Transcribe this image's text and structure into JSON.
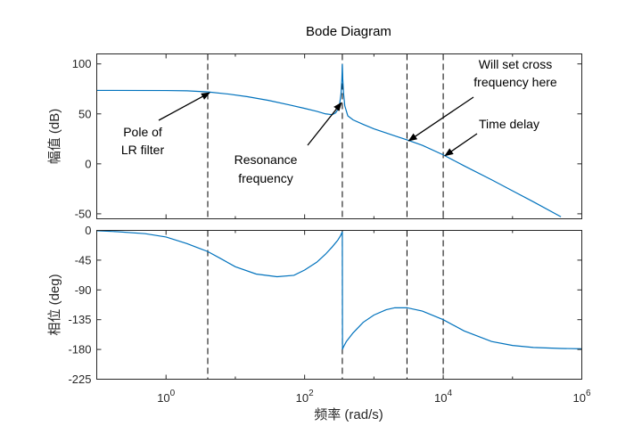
{
  "chart_data": {
    "type": "line",
    "title": "Bode Diagram",
    "xlabel": "频率  (rad/s)",
    "xscale": "log",
    "xlim": [
      0.1,
      1000000
    ],
    "xticks": [
      {
        "value": 1,
        "base": "10",
        "exp": "0"
      },
      {
        "value": 100,
        "base": "10",
        "exp": "2"
      },
      {
        "value": 10000,
        "base": "10",
        "exp": "4"
      },
      {
        "value": 1000000,
        "base": "10",
        "exp": "6"
      }
    ],
    "grid": false,
    "line_color": "#0072BD",
    "vlines": [
      4,
      350,
      3000,
      10000
    ],
    "magnitude": {
      "ylabel": "幅值 (dB)",
      "ylim": [
        -55,
        110
      ],
      "yticks": [
        "-50",
        "0",
        "50",
        "100"
      ],
      "series": [
        {
          "x": [
            0.1,
            1,
            2,
            4,
            8,
            15,
            30,
            60,
            100,
            150,
            200,
            250,
            280,
            300,
            320,
            335,
            345,
            350,
            355,
            365,
            380,
            420,
            500,
            700,
            1000,
            2000,
            3000,
            5000,
            10000,
            20000,
            50000,
            100000,
            200000,
            500000
          ],
          "y": [
            73.5,
            73.4,
            73.1,
            72,
            69.8,
            67.2,
            63.5,
            59,
            55.5,
            52.5,
            50,
            49.2,
            51,
            54,
            60,
            70,
            85,
            100,
            85,
            70,
            58,
            48,
            44,
            39.5,
            35,
            28,
            24,
            18.5,
            9,
            -2,
            -16,
            -27,
            -38,
            -53
          ]
        }
      ]
    },
    "phase": {
      "ylabel": "相位 (deg)",
      "ylim": [
        -225,
        0
      ],
      "yticks": [
        "0",
        "-45",
        "-90",
        "-135",
        "-180",
        "-225"
      ],
      "series": [
        {
          "x": [
            0.1,
            0.2,
            0.5,
            1,
            2,
            3,
            4,
            6,
            10,
            20,
            40,
            70,
            100,
            150,
            200,
            250,
            300,
            330,
            350,
            352,
            360,
            400,
            500,
            700,
            1000,
            1500,
            2000,
            3000,
            5000,
            10000,
            20000,
            50000,
            100000,
            200000,
            500000,
            1000000
          ],
          "y": [
            -0.5,
            -2,
            -5,
            -10,
            -20,
            -27,
            -32,
            -42,
            -55,
            -66,
            -70,
            -68,
            -60,
            -48,
            -36,
            -25,
            -15,
            -8,
            -2,
            -180,
            -177,
            -168,
            -155,
            -139,
            -128,
            -120,
            -117,
            -117,
            -122,
            -135,
            -152,
            -168,
            -174,
            -177,
            -178.5,
            -179
          ]
        }
      ]
    },
    "annotations": [
      {
        "lines": [
          "Pole of",
          "LR filter"
        ],
        "x": 4,
        "y": 72
      },
      {
        "lines": [
          "Resonance",
          "frequency"
        ],
        "x": 320,
        "y": 62
      },
      {
        "lines": [
          "Will set cross",
          "frequency here"
        ],
        "x": 3000,
        "y": 24
      },
      {
        "lines": [
          "Time delay"
        ],
        "x": 10000,
        "y": 9
      }
    ]
  }
}
